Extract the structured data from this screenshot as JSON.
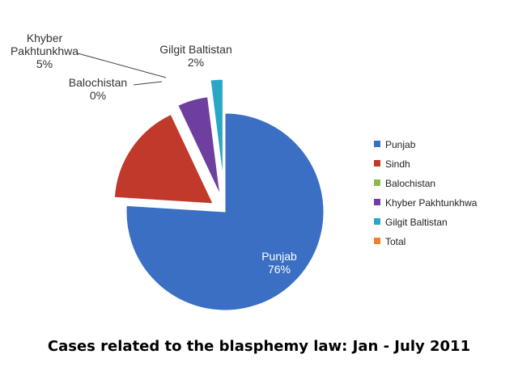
{
  "chart_data": {
    "type": "pie",
    "title": "Cases related to the blasphemy law: Jan - July 2011",
    "slices": [
      {
        "name": "Punjab",
        "value": 76,
        "label": "76%",
        "color": "#3a6fc4"
      },
      {
        "name": "Sindh",
        "value": 17,
        "label": "17%",
        "color": "#c0392b"
      },
      {
        "name": "Balochistan",
        "value": 0,
        "label": "0%",
        "color": "#8db84a"
      },
      {
        "name": "Khyber Pakhtunkhwa",
        "value": 5,
        "label": "5%",
        "color": "#6f3fa0"
      },
      {
        "name": "Gilgit Baltistan",
        "value": 2,
        "label": "2%",
        "color": "#2aa7c4"
      }
    ],
    "legend": {
      "placement": "right",
      "entries": [
        {
          "name": "Punjab",
          "color": "#3a6fc4"
        },
        {
          "name": "Sindh",
          "color": "#c0392b"
        },
        {
          "name": "Balochistan",
          "color": "#8db84a"
        },
        {
          "name": "Khyber Pakhtunkhwa",
          "color": "#6f3fa0"
        },
        {
          "name": "Gilgit Baltistan",
          "color": "#2aa7c4"
        },
        {
          "name": "Total",
          "color": "#f07f2a"
        }
      ]
    },
    "exploded": true
  }
}
